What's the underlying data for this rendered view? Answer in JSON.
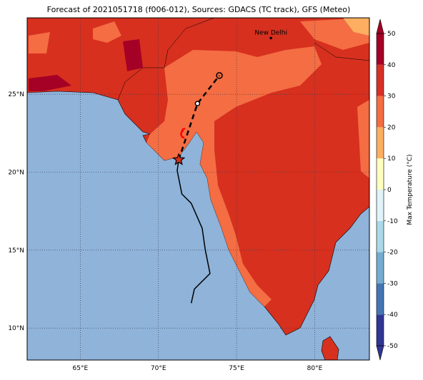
{
  "title": "Forecast of 2021051718 (f006-012), Sources: GDACS (TC track), GFS (Meteo)",
  "map": {
    "lonlim": [
      61.6,
      83.5
    ],
    "latlim": [
      7.95,
      29.9
    ],
    "lon_ticks": [
      {
        "value": 65,
        "label": "65°E"
      },
      {
        "value": 70,
        "label": "70°E"
      },
      {
        "value": 75,
        "label": "75°E"
      },
      {
        "value": 80,
        "label": "80°E"
      }
    ],
    "lat_ticks": [
      {
        "value": 10,
        "label": "10°N"
      },
      {
        "value": 15,
        "label": "15°N"
      },
      {
        "value": 20,
        "label": "20°N"
      },
      {
        "value": 25,
        "label": "25°N"
      }
    ],
    "places": [
      {
        "name": "New Delhi",
        "lon": 77.2,
        "lat": 28.6
      }
    ],
    "observed_track": {
      "lon": [
        72.1,
        72.3,
        73.3,
        73.0,
        72.8,
        72.1,
        71.5,
        71.2,
        71.3
      ],
      "lat": [
        11.6,
        12.5,
        13.5,
        15.0,
        16.4,
        18.0,
        18.6,
        20.1,
        20.8
      ]
    },
    "forecast_track": {
      "lon": [
        71.3,
        72.5,
        73.9
      ],
      "lat": [
        20.8,
        24.4,
        26.2
      ]
    }
  },
  "colorbar": {
    "label": "Max Temperature (°C)",
    "lim": [
      -50,
      50
    ],
    "ticks": [
      -50,
      -40,
      -30,
      -20,
      -10,
      0,
      10,
      20,
      30,
      40,
      50
    ],
    "colors": [
      "#313695",
      "#4575b4",
      "#74add1",
      "#abd9e9",
      "#e0f3f8",
      "#ffffbf",
      "#fdae61",
      "#f46d43",
      "#d73027",
      "#a50026"
    ]
  }
}
